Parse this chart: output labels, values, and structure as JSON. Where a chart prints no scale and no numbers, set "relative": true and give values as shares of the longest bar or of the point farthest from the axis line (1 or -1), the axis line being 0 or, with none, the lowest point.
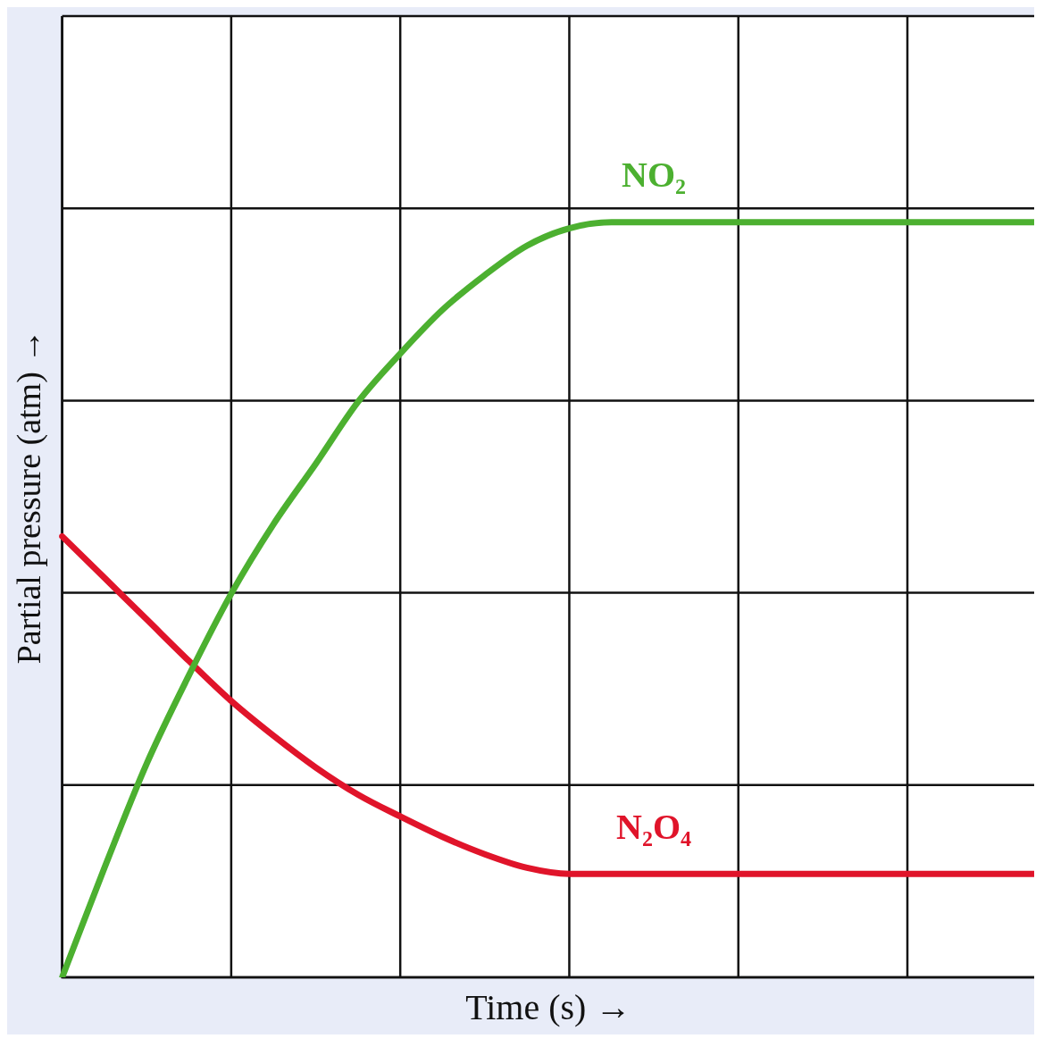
{
  "chart_data": {
    "type": "line",
    "relative": true,
    "xlabel": "Time (s) →",
    "ylabel": "Partial pressure (atm) →",
    "categories": [
      null,
      null,
      null,
      null,
      null,
      null,
      null,
      null,
      null,
      null,
      null,
      null,
      null,
      null,
      null,
      null,
      null,
      null,
      null,
      null,
      null,
      null,
      null,
      null
    ],
    "series": [
      {
        "name": "NO₂",
        "color": "#4cb030",
        "values": [
          0,
          0.145,
          0.283,
          0.4,
          0.508,
          0.6,
          0.68,
          0.762,
          0.826,
          0.884,
          0.93,
          0.969,
          0.992,
          1,
          1,
          1,
          1,
          1,
          1,
          1,
          1,
          1,
          1,
          1
        ]
      },
      {
        "name": "N₂O₄",
        "color": "#e0142a",
        "values": [
          0.584,
          0.529,
          0.474,
          0.419,
          0.366,
          0.32,
          0.278,
          0.242,
          0.213,
          0.186,
          0.163,
          0.145,
          0.137,
          0.137,
          0.137,
          0.137,
          0.137,
          0.137,
          0.137,
          0.137,
          0.137,
          0.137,
          0.137,
          0.137
        ]
      }
    ],
    "grid": true,
    "legend": false,
    "marker": "none",
    "line_style": "solid"
  }
}
